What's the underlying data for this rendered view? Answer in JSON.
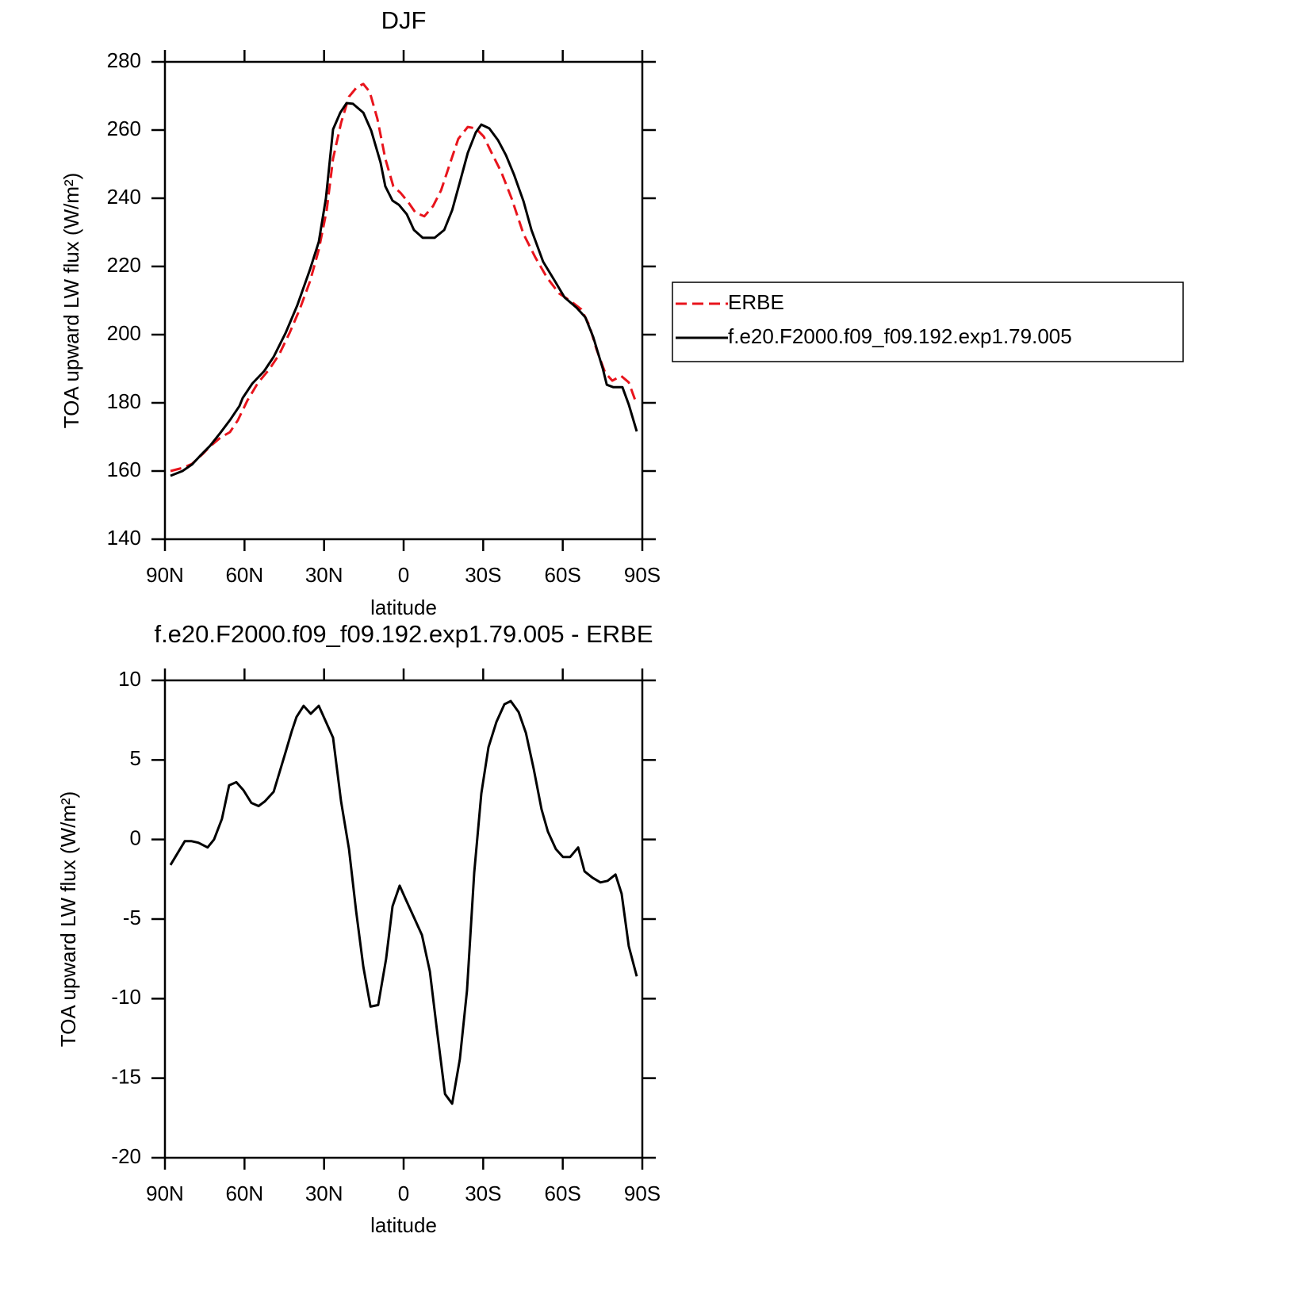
{
  "chart_data": [
    {
      "type": "line",
      "title": "DJF",
      "xlabel": "latitude",
      "ylabel": "TOA upward LW flux (W/m²)",
      "xlim": [
        90,
        -90
      ],
      "xticks": [
        {
          "value": 90,
          "label": "90N"
        },
        {
          "value": 60,
          "label": "60N"
        },
        {
          "value": 30,
          "label": "30N"
        },
        0,
        {
          "value": -30,
          "label": "30S"
        },
        {
          "value": -60,
          "label": "60S"
        },
        {
          "value": -90,
          "label": "90S"
        }
      ],
      "ylim": [
        140,
        280
      ],
      "yticks": [
        140,
        160,
        180,
        200,
        220,
        240,
        260,
        280
      ],
      "legend": "right",
      "series": [
        {
          "name": "ERBE",
          "color": "#e8141c",
          "style": "dashed",
          "x": [
            87.9,
            83.4,
            79.8,
            75.9,
            73.0,
            69.1,
            65.5,
            62.5,
            58.9,
            55.0,
            50.5,
            46.9,
            43.0,
            39.2,
            35.3,
            32.0,
            29.0,
            26.6,
            23.6,
            20.6,
            17.6,
            15.2,
            12.8,
            9.9,
            6.9,
            3.9,
            1.2,
            -1.8,
            -4.5,
            -7.8,
            -11.1,
            -14.1,
            -17.4,
            -20.6,
            -24.2,
            -27.2,
            -30.2,
            -33.2,
            -36.8,
            -40.7,
            -45.2,
            -49.7,
            -54.1,
            -58.6,
            -63.1,
            -67.0,
            -70.0,
            -72.7,
            -76.0,
            -78.7,
            -82.0,
            -84.9,
            -87.9
          ],
          "values": [
            160.0,
            160.9,
            162.1,
            164.9,
            167.2,
            169.8,
            171.4,
            174.9,
            180.7,
            185.8,
            190.0,
            194.2,
            200.5,
            207.4,
            215.6,
            224.9,
            236.5,
            251.6,
            262.1,
            269.8,
            272.6,
            273.5,
            271.2,
            263.3,
            251.6,
            243.5,
            241.6,
            238.8,
            235.8,
            234.7,
            237.7,
            242.3,
            250.0,
            257.4,
            260.9,
            260.5,
            258.1,
            253.3,
            247.7,
            240.0,
            229.5,
            222.6,
            216.7,
            212.1,
            209.8,
            207.4,
            202.8,
            195.8,
            188.8,
            186.5,
            187.9,
            186.0,
            179.5
          ]
        },
        {
          "name": "f.e20.F2000.f09_f09.192.exp1.79.005",
          "color": "#000000",
          "style": "solid",
          "x": [
            87.9,
            83.4,
            79.8,
            76.8,
            73.0,
            69.1,
            65.5,
            61.9,
            60.7,
            57.1,
            52.6,
            49.0,
            44.5,
            40.1,
            35.3,
            32.0,
            29.3,
            26.6,
            23.9,
            21.5,
            19.1,
            15.2,
            12.2,
            8.7,
            6.9,
            4.2,
            1.8,
            -1.2,
            -3.9,
            -7.2,
            -11.7,
            -15.3,
            -18.3,
            -21.2,
            -24.2,
            -27.2,
            -29.3,
            -32.3,
            -35.6,
            -38.6,
            -41.6,
            -45.2,
            -48.2,
            -52.6,
            -57.1,
            -60.7,
            -65.2,
            -68.5,
            -71.5,
            -75.1,
            -76.6,
            -79.0,
            -82.5,
            -84.9,
            -87.9
          ],
          "values": [
            158.6,
            160.0,
            161.9,
            164.4,
            167.4,
            171.2,
            174.9,
            179.1,
            181.4,
            185.6,
            189.3,
            193.5,
            200.5,
            208.6,
            219.1,
            227.2,
            240.0,
            260.2,
            265.1,
            267.9,
            267.7,
            265.1,
            259.8,
            250.5,
            243.5,
            239.3,
            238.1,
            235.3,
            230.7,
            228.4,
            228.4,
            230.7,
            236.5,
            244.7,
            253.3,
            259.3,
            261.6,
            260.5,
            257.0,
            252.6,
            247.0,
            239.1,
            230.7,
            221.4,
            215.6,
            210.9,
            207.9,
            205.1,
            199.3,
            190.0,
            185.3,
            184.6,
            184.6,
            179.5,
            171.6
          ]
        }
      ]
    },
    {
      "type": "line",
      "title": "f.e20.F2000.f09_f09.192.exp1.79.005 - ERBE",
      "xlabel": "latitude",
      "ylabel": "TOA upward LW flux (W/m²)",
      "xlim": [
        90,
        -90
      ],
      "xticks": [
        {
          "value": 90,
          "label": "90N"
        },
        {
          "value": 60,
          "label": "60N"
        },
        {
          "value": 30,
          "label": "30N"
        },
        0,
        {
          "value": -30,
          "label": "30S"
        },
        {
          "value": -60,
          "label": "60S"
        },
        {
          "value": -90,
          "label": "90S"
        }
      ],
      "ylim": [
        -20,
        10
      ],
      "yticks": [
        -20,
        -15,
        -10,
        -5,
        0,
        5,
        10
      ],
      "series": [
        {
          "color": "#000000",
          "style": "solid",
          "x": [
            87.9,
            82.5,
            80.1,
            77.4,
            73.9,
            71.5,
            68.5,
            65.8,
            63.1,
            60.4,
            57.4,
            54.7,
            52.3,
            49.0,
            44.5,
            42.2,
            40.4,
            37.7,
            35.0,
            32.0,
            26.6,
            23.6,
            20.6,
            17.9,
            15.2,
            12.5,
            9.6,
            6.6,
            4.2,
            1.5,
            -0.9,
            -4.2,
            -6.9,
            -9.9,
            -12.6,
            -15.6,
            -18.3,
            -21.2,
            -23.9,
            -26.6,
            -29.3,
            -32.0,
            -35.0,
            -38.0,
            -40.4,
            -43.4,
            -46.1,
            -49.1,
            -52.0,
            -54.4,
            -57.4,
            -60.1,
            -62.8,
            -65.8,
            -68.2,
            -71.2,
            -74.2,
            -76.9,
            -79.9,
            -82.2,
            -84.9,
            -87.9
          ],
          "values": [
            -1.6,
            -0.1,
            -0.1,
            -0.2,
            -0.5,
            0.0,
            1.3,
            3.4,
            3.6,
            3.1,
            2.3,
            2.1,
            2.4,
            3.0,
            5.5,
            6.8,
            7.7,
            8.4,
            7.9,
            8.4,
            6.4,
            2.4,
            -0.6,
            -4.5,
            -8.0,
            -10.5,
            -10.4,
            -7.5,
            -4.2,
            -2.9,
            -3.8,
            -5.0,
            -6.0,
            -8.3,
            -12.0,
            -16.0,
            -16.6,
            -13.8,
            -9.5,
            -2.1,
            2.9,
            5.8,
            7.4,
            8.5,
            8.7,
            8.0,
            6.7,
            4.4,
            1.9,
            0.5,
            -0.6,
            -1.1,
            -1.1,
            -0.5,
            -2.0,
            -2.4,
            -2.7,
            -2.6,
            -2.2,
            -3.4,
            -6.7,
            -8.6
          ]
        }
      ]
    }
  ]
}
